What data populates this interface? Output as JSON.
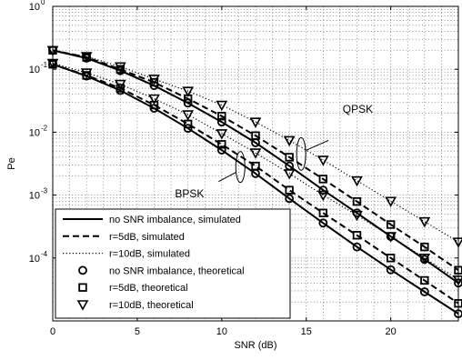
{
  "chart_data": {
    "type": "line",
    "title": "",
    "xlabel": "SNR (dB)",
    "ylabel": "Pe",
    "xlim": [
      0,
      24
    ],
    "ylim": [
      1e-05,
      1
    ],
    "yscale": "log",
    "grid": true,
    "legend_position": "bottom-left",
    "x_ticks": [
      0,
      5,
      10,
      15,
      20
    ],
    "y_ticks": [
      {
        "value": 1,
        "exp": "0"
      },
      {
        "value": 0.1,
        "exp": "-1"
      },
      {
        "value": 0.01,
        "exp": "-2"
      },
      {
        "value": 0.001,
        "exp": "-3"
      },
      {
        "value": 0.0001,
        "exp": "-4"
      }
    ],
    "tick_base": "10",
    "x": [
      0,
      2,
      4,
      6,
      8,
      10,
      12,
      14,
      16,
      18,
      20,
      22,
      24
    ],
    "series": [
      {
        "name": "no SNR imbalance, simulated",
        "group": "BPSK",
        "style": "solid",
        "values": [
          0.12,
          0.078,
          0.046,
          0.024,
          0.0115,
          0.0052,
          0.0022,
          0.00088,
          0.00036,
          0.00015,
          6.5e-05,
          2.9e-05,
          1.3e-05
        ]
      },
      {
        "name": "r=5dB, simulated",
        "group": "BPSK",
        "style": "dashed",
        "values": [
          0.12,
          0.08,
          0.05,
          0.027,
          0.0135,
          0.0064,
          0.0029,
          0.0012,
          0.00052,
          0.00023,
          0.0001,
          4.4e-05,
          1.9e-05
        ]
      },
      {
        "name": "r=10dB, simulated",
        "group": "BPSK",
        "style": "dotted",
        "values": [
          0.125,
          0.088,
          0.058,
          0.034,
          0.019,
          0.0095,
          0.0047,
          0.0022,
          0.001,
          0.00048,
          0.00022,
          0.0001,
          4.5e-05
        ]
      },
      {
        "name": "no SNR imbalance, theoretical",
        "group": "BPSK",
        "marker": "circle",
        "values": [
          0.12,
          0.078,
          0.046,
          0.024,
          0.0115,
          0.0052,
          0.0022,
          0.00088,
          0.00036,
          0.00015,
          6.5e-05,
          2.9e-05,
          1.3e-05
        ]
      },
      {
        "name": "r=5dB, theoretical",
        "group": "BPSK",
        "marker": "square",
        "values": [
          0.12,
          0.08,
          0.05,
          0.027,
          0.0135,
          0.0064,
          0.0029,
          0.0012,
          0.00052,
          0.00023,
          0.0001,
          4.4e-05,
          1.9e-05
        ]
      },
      {
        "name": "r=10dB, theoretical",
        "group": "BPSK",
        "marker": "triangle",
        "values": [
          0.125,
          0.088,
          0.058,
          0.034,
          0.019,
          0.0095,
          0.0047,
          0.0022,
          0.001,
          0.00048,
          0.00022,
          0.0001,
          4.5e-05
        ]
      },
      {
        "name": "no SNR imbalance, simulated",
        "group": "QPSK",
        "style": "solid",
        "values": [
          0.2,
          0.15,
          0.095,
          0.055,
          0.029,
          0.0145,
          0.0068,
          0.0029,
          0.0012,
          0.00052,
          0.00022,
          9.5e-05,
          4e-05
        ]
      },
      {
        "name": "r=5dB, simulated",
        "group": "QPSK",
        "style": "dashed",
        "values": [
          0.2,
          0.155,
          0.1,
          0.062,
          0.034,
          0.018,
          0.0088,
          0.004,
          0.0018,
          0.00079,
          0.00034,
          0.00015,
          6.4e-05
        ]
      },
      {
        "name": "r=10dB, simulated",
        "group": "QPSK",
        "style": "dotted",
        "values": [
          0.2,
          0.16,
          0.11,
          0.07,
          0.045,
          0.027,
          0.0145,
          0.0074,
          0.0036,
          0.0017,
          0.0008,
          0.00038,
          0.00018
        ]
      },
      {
        "name": "no SNR imbalance, theoretical",
        "group": "QPSK",
        "marker": "circle",
        "values": [
          0.2,
          0.15,
          0.095,
          0.055,
          0.029,
          0.0145,
          0.0068,
          0.0029,
          0.0012,
          0.00052,
          0.00022,
          9.5e-05,
          4e-05
        ]
      },
      {
        "name": "r=5dB, theoretical",
        "group": "QPSK",
        "marker": "square",
        "values": [
          0.2,
          0.155,
          0.1,
          0.062,
          0.034,
          0.018,
          0.0088,
          0.004,
          0.0018,
          0.00079,
          0.00034,
          0.00015,
          6.4e-05
        ]
      },
      {
        "name": "r=10dB, theoretical",
        "group": "QPSK",
        "marker": "triangle",
        "values": [
          0.2,
          0.16,
          0.11,
          0.07,
          0.045,
          0.027,
          0.0145,
          0.0074,
          0.0036,
          0.0017,
          0.0008,
          0.00038,
          0.00018
        ]
      }
    ],
    "legend": [
      {
        "label": "no SNR imbalance, simulated",
        "kind": "line",
        "style": "solid"
      },
      {
        "label": "r=5dB, simulated",
        "kind": "line",
        "style": "dashed"
      },
      {
        "label": "r=10dB, simulated",
        "kind": "line",
        "style": "dotted"
      },
      {
        "label": "no SNR imbalance, theoretical",
        "kind": "marker",
        "marker": "circle"
      },
      {
        "label": "r=5dB, theoretical",
        "kind": "marker",
        "marker": "square"
      },
      {
        "label": "r=10dB, theoretical",
        "kind": "marker",
        "marker": "triangle"
      }
    ],
    "annotations": [
      {
        "text": "QPSK",
        "x": 15.0,
        "y": 0.005
      },
      {
        "text": "BPSK",
        "x": 11.0,
        "y": 0.0035
      }
    ]
  }
}
